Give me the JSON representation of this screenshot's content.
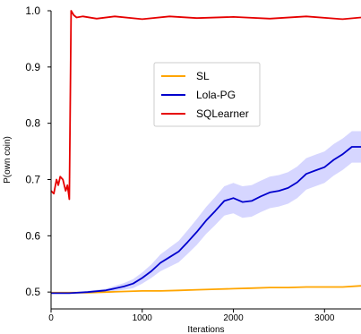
{
  "chart_data": {
    "type": "line",
    "xlabel": "Iterations",
    "ylabel": "P(own coin)",
    "xlim": [
      0,
      3400
    ],
    "ylim": [
      0.47,
      1.0
    ],
    "x_ticks": [
      "0",
      "1000",
      "2000",
      "3000"
    ],
    "y_ticks": [
      "0.5",
      "0.6",
      "0.7",
      "0.8",
      "0.9",
      "1.0"
    ],
    "grid": false,
    "legend_position": "upper-center",
    "series": [
      {
        "name": "SL",
        "color": "#ffa500",
        "x": [
          0,
          200,
          400,
          600,
          800,
          1000,
          1200,
          1400,
          1600,
          1800,
          2000,
          2200,
          2400,
          2600,
          2800,
          3000,
          3200,
          3400
        ],
        "y": [
          0.499,
          0.499,
          0.499,
          0.5,
          0.501,
          0.502,
          0.502,
          0.503,
          0.504,
          0.505,
          0.506,
          0.507,
          0.508,
          0.508,
          0.509,
          0.509,
          0.509,
          0.511
        ]
      },
      {
        "name": "Lola-PG",
        "color": "#0000cd",
        "band_color": "#c8c8ff",
        "x": [
          0,
          200,
          400,
          600,
          800,
          900,
          1000,
          1100,
          1200,
          1300,
          1400,
          1500,
          1600,
          1700,
          1800,
          1900,
          2000,
          2100,
          2200,
          2300,
          2400,
          2500,
          2600,
          2700,
          2800,
          2900,
          3000,
          3100,
          3200,
          3300,
          3400
        ],
        "y": [
          0.498,
          0.498,
          0.5,
          0.503,
          0.51,
          0.515,
          0.525,
          0.537,
          0.552,
          0.562,
          0.572,
          0.589,
          0.607,
          0.627,
          0.644,
          0.662,
          0.667,
          0.66,
          0.662,
          0.67,
          0.677,
          0.68,
          0.685,
          0.695,
          0.71,
          0.716,
          0.722,
          0.735,
          0.745,
          0.758,
          0.758
        ],
        "band_half_width": [
          0.0,
          0.001,
          0.002,
          0.003,
          0.006,
          0.008,
          0.01,
          0.012,
          0.015,
          0.017,
          0.019,
          0.021,
          0.023,
          0.024,
          0.025,
          0.026,
          0.027,
          0.028,
          0.028,
          0.028,
          0.028,
          0.028,
          0.028,
          0.028,
          0.028,
          0.028,
          0.028,
          0.028,
          0.028,
          0.028,
          0.028
        ]
      },
      {
        "name": "SQLearner",
        "color": "#e60000",
        "x": [
          0,
          30,
          60,
          80,
          100,
          130,
          160,
          180,
          200,
          220,
          250,
          280,
          350,
          500,
          700,
          1000,
          1300,
          1600,
          2000,
          2400,
          2800,
          3200,
          3400
        ],
        "y": [
          0.68,
          0.675,
          0.7,
          0.69,
          0.705,
          0.7,
          0.68,
          0.69,
          0.665,
          1.0,
          0.992,
          0.988,
          0.99,
          0.986,
          0.99,
          0.985,
          0.99,
          0.987,
          0.989,
          0.986,
          0.99,
          0.985,
          0.988
        ]
      }
    ]
  }
}
